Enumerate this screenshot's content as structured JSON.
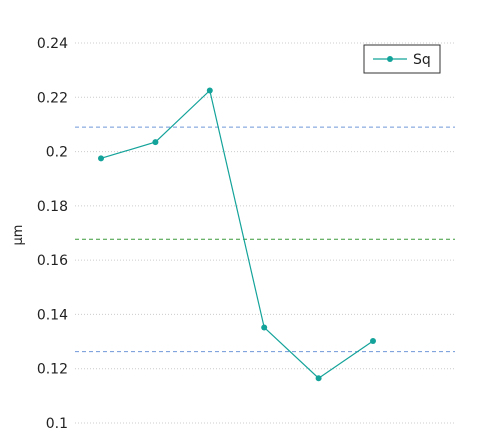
{
  "chart_data": {
    "type": "line",
    "x": [
      1,
      2,
      3,
      4,
      5,
      6
    ],
    "series": [
      {
        "name": "Sq",
        "values": [
          0.1975,
          0.2035,
          0.2225,
          0.1352,
          0.1165,
          0.1302
        ],
        "color": "#14a39a"
      }
    ],
    "ylabel": "µm",
    "ylim": [
      0.1,
      0.24
    ],
    "yticks": [
      0.1,
      0.12,
      0.14,
      0.16,
      0.18,
      0.2,
      0.22,
      0.24
    ],
    "ytick_labels": [
      "0.1",
      "0.12",
      "0.14",
      "0.16",
      "0.18",
      "0.2",
      "0.22",
      "0.24"
    ],
    "grid": true,
    "reference_lines": [
      {
        "y": 0.209,
        "color": "#6f97d6",
        "style": "dashed"
      },
      {
        "y": 0.1677,
        "color": "#3a9a3a",
        "style": "dashed"
      },
      {
        "y": 0.1263,
        "color": "#6f97d6",
        "style": "dashed"
      }
    ],
    "legend": {
      "position": "top-right"
    }
  }
}
